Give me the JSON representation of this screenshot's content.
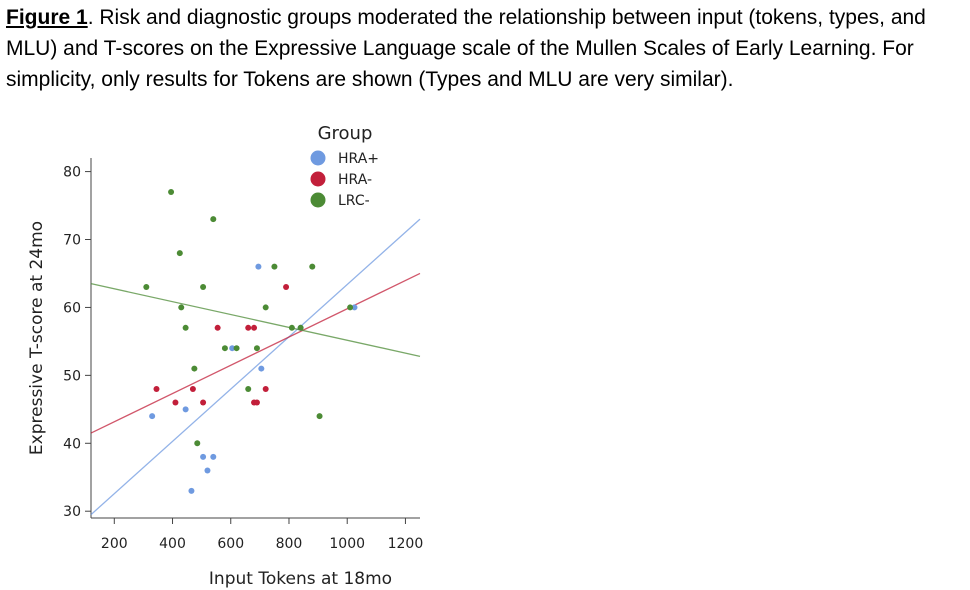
{
  "caption": {
    "figure_label": "Figure 1",
    "text": ". Risk and diagnostic groups moderated the relationship between input (tokens, types, and MLU) and T-scores on the Expressive Language scale of the Mullen Scales of Early Learning. For simplicity, only results for Tokens are shown (Types and MLU are very similar)."
  },
  "chart_data": {
    "type": "scatter",
    "xlabel": "Input Tokens at 18mo",
    "ylabel": "Expressive T-score at 24mo",
    "xlim": [
      120,
      1250
    ],
    "ylim": [
      29,
      82
    ],
    "xticks": [
      200,
      400,
      600,
      800,
      1000,
      1200
    ],
    "yticks": [
      30,
      40,
      50,
      60,
      70,
      80
    ],
    "grid": false,
    "legend": {
      "title": "Group",
      "placement": "top-right"
    },
    "series": [
      {
        "name": "HRA+",
        "color": "#6f9ae0",
        "points": [
          [
            330,
            44
          ],
          [
            445,
            45
          ],
          [
            465,
            33
          ],
          [
            505,
            38
          ],
          [
            520,
            36
          ],
          [
            540,
            38
          ],
          [
            605,
            54
          ],
          [
            695,
            66
          ],
          [
            705,
            51
          ],
          [
            840,
            57
          ],
          [
            1025,
            60
          ]
        ],
        "fit": [
          [
            120,
            29.5
          ],
          [
            1250,
            73
          ]
        ]
      },
      {
        "name": "HRA-",
        "color": "#c21f3a",
        "points": [
          [
            345,
            48
          ],
          [
            410,
            46
          ],
          [
            470,
            48
          ],
          [
            505,
            46
          ],
          [
            555,
            57
          ],
          [
            660,
            57
          ],
          [
            680,
            46
          ],
          [
            680,
            57
          ],
          [
            690,
            46
          ],
          [
            720,
            48
          ],
          [
            790,
            63
          ]
        ],
        "fit": [
          [
            120,
            41.5
          ],
          [
            1250,
            65
          ]
        ]
      },
      {
        "name": "LRC-",
        "color": "#4c8b35",
        "points": [
          [
            310,
            63
          ],
          [
            395,
            77
          ],
          [
            425,
            68
          ],
          [
            430,
            60
          ],
          [
            445,
            57
          ],
          [
            475,
            51
          ],
          [
            485,
            40
          ],
          [
            505,
            63
          ],
          [
            540,
            73
          ],
          [
            580,
            54
          ],
          [
            620,
            54
          ],
          [
            660,
            48
          ],
          [
            690,
            54
          ],
          [
            720,
            60
          ],
          [
            750,
            66
          ],
          [
            810,
            57
          ],
          [
            840,
            57
          ],
          [
            880,
            66
          ],
          [
            905,
            44
          ],
          [
            1010,
            60
          ]
        ],
        "fit": [
          [
            120,
            63.5
          ],
          [
            1250,
            52.8
          ]
        ]
      }
    ]
  }
}
